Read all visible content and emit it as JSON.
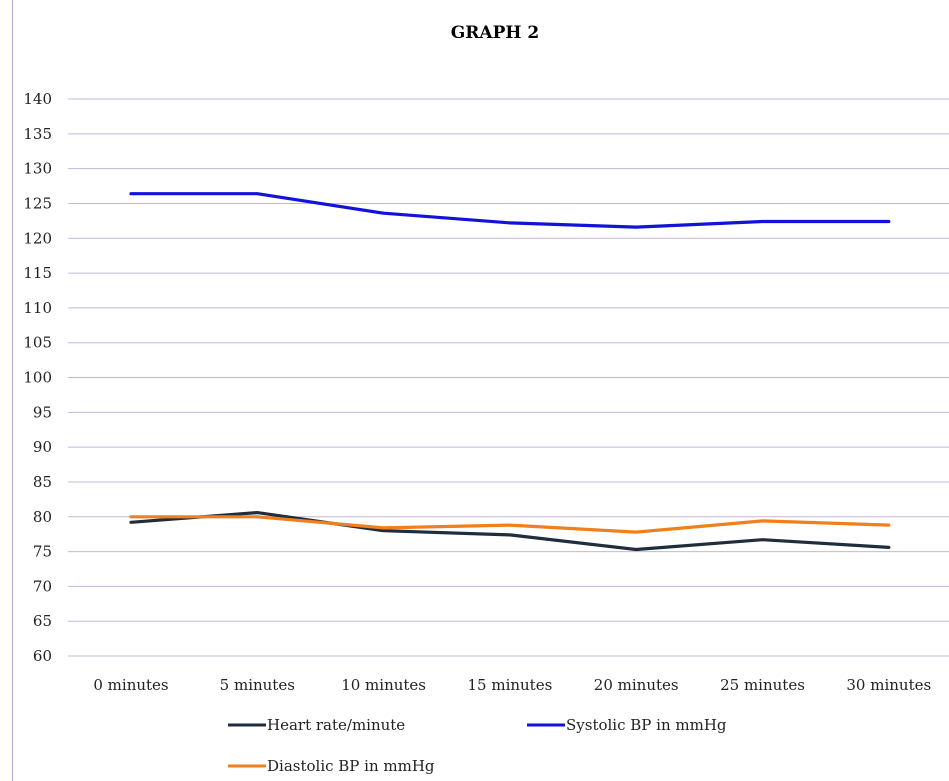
{
  "chart_data": {
    "type": "line",
    "title": "GRAPH 2",
    "xlabel": "",
    "ylabel": "",
    "categories": [
      "0 minutes",
      "5 minutes",
      "10 minutes",
      "15 minutes",
      "20 minutes",
      "25 minutes",
      "30 minutes"
    ],
    "ylim": [
      60,
      140
    ],
    "yticks": [
      60,
      65,
      70,
      75,
      80,
      85,
      90,
      95,
      100,
      105,
      110,
      115,
      120,
      125,
      130,
      135,
      140
    ],
    "grid": true,
    "legend_position": "bottom",
    "series": [
      {
        "name": "Heart rate/minute",
        "color": "#1f2d3d",
        "values": [
          79.2,
          80.6,
          78.0,
          77.4,
          75.3,
          76.7,
          75.6
        ]
      },
      {
        "name": "Systolic BP in mmHg",
        "color": "#1212d9",
        "values": [
          126.4,
          126.4,
          123.6,
          122.2,
          121.6,
          122.4,
          122.4
        ]
      },
      {
        "name": "Diastolic BP in mmHg",
        "color": "#f07f1e",
        "values": [
          80.0,
          80.0,
          78.4,
          78.8,
          77.8,
          79.4,
          78.8
        ]
      }
    ],
    "gridline_color": "#c9b5dc"
  }
}
